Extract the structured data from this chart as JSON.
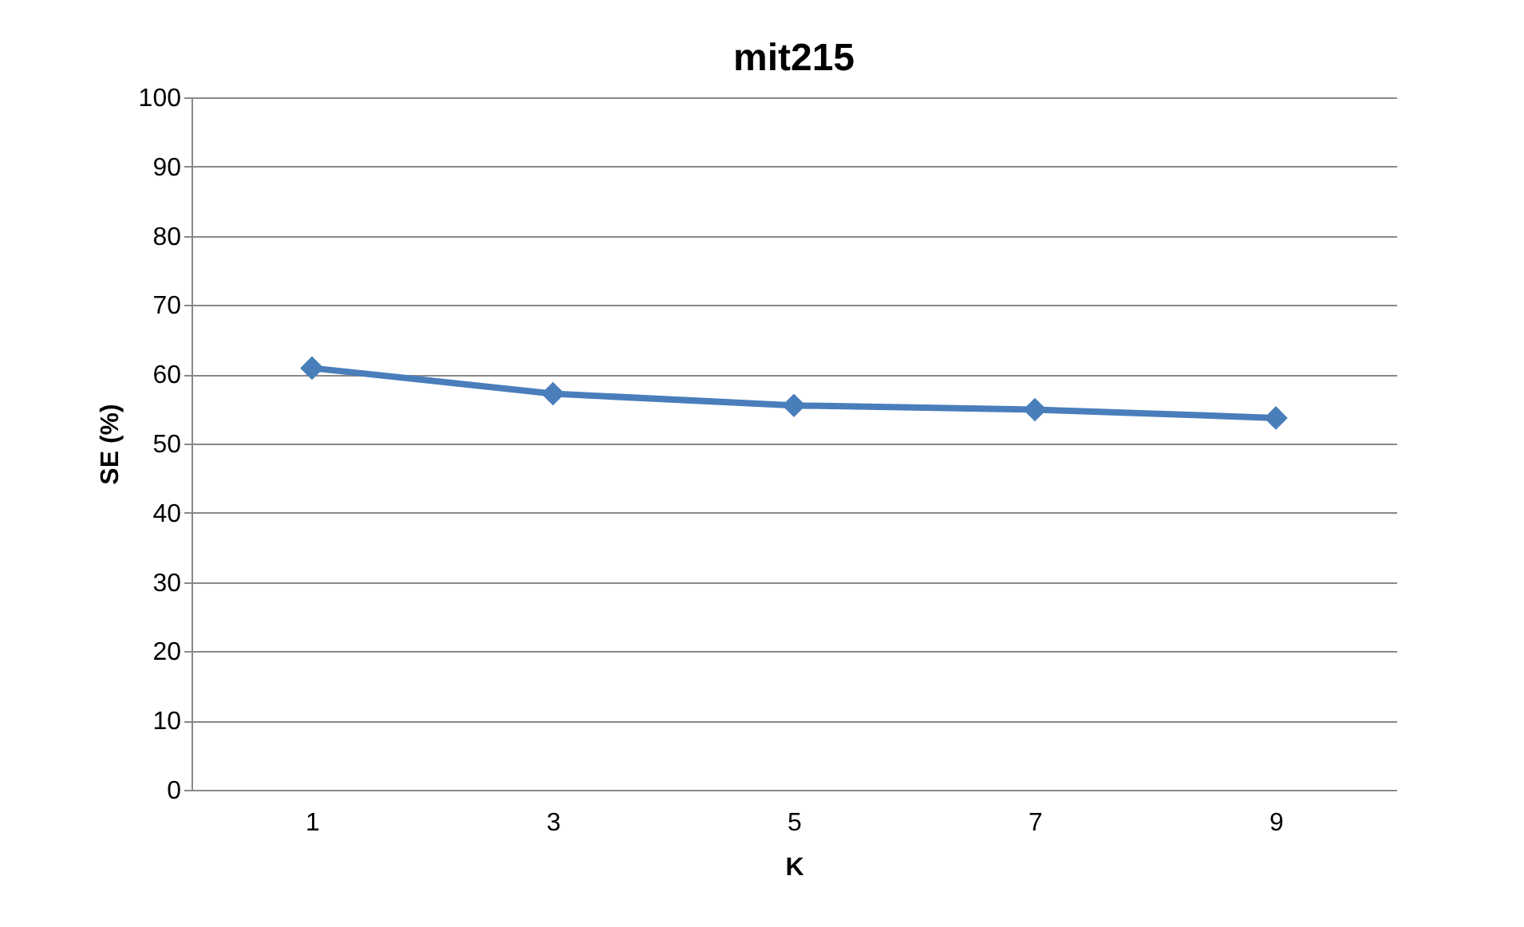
{
  "chart_data": {
    "type": "line",
    "title": "mit215",
    "xlabel": "K",
    "ylabel": "SE (%)",
    "categories": [
      "1",
      "3",
      "5",
      "7",
      "9"
    ],
    "series": [
      {
        "color": "#4a7ebb",
        "values": [
          60.9,
          57.2,
          55.5,
          54.9,
          53.7
        ]
      }
    ],
    "ylim": [
      0,
      100
    ],
    "yticks": [
      0,
      10,
      20,
      30,
      40,
      50,
      60,
      70,
      80,
      90,
      100
    ],
    "grid": "y",
    "marker": "diamond",
    "line_style": "solid",
    "legend": false
  }
}
